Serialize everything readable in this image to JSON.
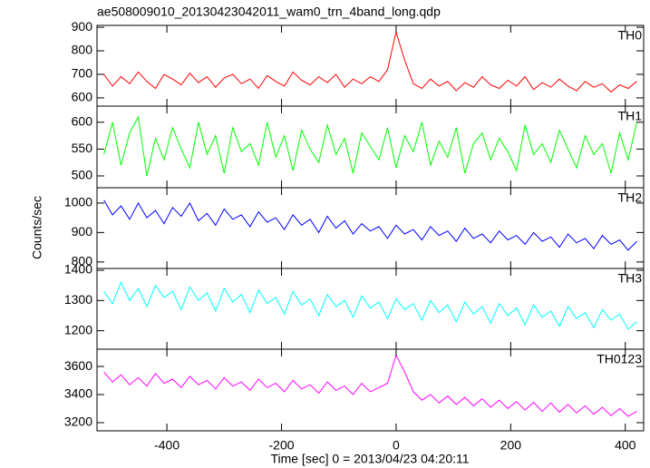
{
  "title": "ae508009010_20130423042011_wam0_trn_4band_long.qdp",
  "y_label": "Counts/sec",
  "x_label": "Time [sec] 0 = 2013/04/23 04:20:11",
  "chart_data": [
    {
      "type": "line",
      "label": "TH0",
      "color": "#ff0000",
      "xlim": [
        -522,
        432
      ],
      "xticks": [
        -400,
        -200,
        0,
        200,
        400
      ],
      "ylim": [
        565,
        908
      ],
      "yticks": [
        600,
        700,
        800,
        900
      ],
      "x": [
        -510,
        -495,
        -480,
        -465,
        -450,
        -435,
        -420,
        -405,
        -390,
        -375,
        -360,
        -345,
        -330,
        -315,
        -300,
        -285,
        -270,
        -255,
        -240,
        -225,
        -210,
        -195,
        -180,
        -165,
        -150,
        -135,
        -120,
        -105,
        -90,
        -75,
        -60,
        -45,
        -30,
        -15,
        0,
        15,
        30,
        45,
        60,
        75,
        90,
        105,
        120,
        135,
        150,
        165,
        180,
        195,
        210,
        225,
        240,
        255,
        270,
        285,
        300,
        315,
        330,
        345,
        360,
        375,
        390,
        405,
        420
      ],
      "values": [
        700,
        650,
        690,
        660,
        710,
        670,
        640,
        700,
        680,
        655,
        705,
        665,
        690,
        645,
        685,
        700,
        660,
        680,
        640,
        695,
        670,
        650,
        710,
        675,
        655,
        690,
        665,
        700,
        645,
        680,
        660,
        690,
        670,
        720,
        880,
        760,
        660,
        640,
        680,
        650,
        670,
        630,
        665,
        645,
        690,
        655,
        640,
        675,
        650,
        690,
        635,
        665,
        645,
        680,
        650,
        630,
        670,
        645,
        660,
        625,
        655,
        640,
        670
      ]
    },
    {
      "type": "line",
      "label": "TH1",
      "color": "#00ff00",
      "xlim": [
        -522,
        432
      ],
      "xticks": [
        -400,
        -200,
        0,
        200,
        400
      ],
      "ylim": [
        478,
        630
      ],
      "yticks": [
        500,
        550,
        600
      ],
      "x": [
        -510,
        -495,
        -480,
        -465,
        -450,
        -435,
        -420,
        -405,
        -390,
        -375,
        -360,
        -345,
        -330,
        -315,
        -300,
        -285,
        -270,
        -255,
        -240,
        -225,
        -210,
        -195,
        -180,
        -165,
        -150,
        -135,
        -120,
        -105,
        -90,
        -75,
        -60,
        -45,
        -30,
        -15,
        0,
        15,
        30,
        45,
        60,
        75,
        90,
        105,
        120,
        135,
        150,
        165,
        180,
        195,
        210,
        225,
        240,
        255,
        270,
        285,
        300,
        315,
        330,
        345,
        360,
        375,
        390,
        405,
        420
      ],
      "values": [
        540,
        600,
        520,
        580,
        610,
        500,
        570,
        530,
        590,
        550,
        515,
        600,
        540,
        575,
        505,
        590,
        545,
        560,
        520,
        600,
        535,
        575,
        510,
        585,
        550,
        525,
        595,
        540,
        570,
        505,
        580,
        555,
        530,
        590,
        515,
        575,
        545,
        600,
        520,
        565,
        535,
        590,
        505,
        560,
        580,
        530,
        570,
        545,
        510,
        595,
        540,
        560,
        525,
        585,
        550,
        515,
        575,
        540,
        560,
        505,
        580,
        530,
        600
      ]
    },
    {
      "type": "line",
      "label": "TH2",
      "color": "#0000ff",
      "xlim": [
        -522,
        432
      ],
      "xticks": [
        -400,
        -200,
        0,
        200,
        400
      ],
      "ylim": [
        778,
        1052
      ],
      "yticks": [
        800,
        900,
        1000
      ],
      "x": [
        -510,
        -495,
        -480,
        -465,
        -450,
        -435,
        -420,
        -405,
        -390,
        -375,
        -360,
        -345,
        -330,
        -315,
        -300,
        -285,
        -270,
        -255,
        -240,
        -225,
        -210,
        -195,
        -180,
        -165,
        -150,
        -135,
        -120,
        -105,
        -90,
        -75,
        -60,
        -45,
        -30,
        -15,
        0,
        15,
        30,
        45,
        60,
        75,
        90,
        105,
        120,
        135,
        150,
        165,
        180,
        195,
        210,
        225,
        240,
        255,
        270,
        285,
        300,
        315,
        330,
        345,
        360,
        375,
        390,
        405,
        420
      ],
      "values": [
        1010,
        960,
        990,
        945,
        1000,
        950,
        975,
        930,
        985,
        955,
        1000,
        940,
        965,
        925,
        980,
        945,
        960,
        920,
        970,
        935,
        950,
        910,
        960,
        925,
        945,
        900,
        955,
        915,
        940,
        895,
        930,
        905,
        920,
        880,
        925,
        895,
        910,
        875,
        920,
        890,
        905,
        870,
        915,
        880,
        895,
        865,
        905,
        875,
        890,
        860,
        900,
        870,
        885,
        850,
        895,
        865,
        880,
        845,
        890,
        860,
        875,
        840,
        870
      ]
    },
    {
      "type": "line",
      "label": "TH3",
      "color": "#00ffff",
      "xlim": [
        -522,
        432
      ],
      "xticks": [
        -400,
        -200,
        0,
        200,
        400
      ],
      "ylim": [
        1139,
        1406
      ],
      "yticks": [
        1200,
        1300,
        1400
      ],
      "x": [
        -510,
        -495,
        -480,
        -465,
        -450,
        -435,
        -420,
        -405,
        -390,
        -375,
        -360,
        -345,
        -330,
        -315,
        -300,
        -285,
        -270,
        -255,
        -240,
        -225,
        -210,
        -195,
        -180,
        -165,
        -150,
        -135,
        -120,
        -105,
        -90,
        -75,
        -60,
        -45,
        -30,
        -15,
        0,
        15,
        30,
        45,
        60,
        75,
        90,
        105,
        120,
        135,
        150,
        165,
        180,
        195,
        210,
        225,
        240,
        255,
        270,
        285,
        300,
        315,
        330,
        345,
        360,
        375,
        390,
        405,
        420
      ],
      "values": [
        1330,
        1290,
        1360,
        1300,
        1340,
        1280,
        1350,
        1310,
        1330,
        1270,
        1345,
        1300,
        1325,
        1265,
        1340,
        1295,
        1320,
        1260,
        1335,
        1290,
        1310,
        1255,
        1330,
        1285,
        1305,
        1250,
        1320,
        1280,
        1300,
        1245,
        1315,
        1275,
        1295,
        1240,
        1305,
        1270,
        1290,
        1235,
        1300,
        1260,
        1285,
        1230,
        1295,
        1255,
        1280,
        1225,
        1290,
        1250,
        1275,
        1220,
        1285,
        1245,
        1265,
        1215,
        1280,
        1240,
        1260,
        1210,
        1270,
        1235,
        1255,
        1205,
        1230
      ]
    },
    {
      "type": "line",
      "label": "TH0123",
      "color": "#ff00ff",
      "xlim": [
        -522,
        432
      ],
      "xticks": [
        -400,
        -200,
        0,
        200,
        400
      ],
      "ylim": [
        3142,
        3723
      ],
      "yticks": [
        3200,
        3400,
        3600
      ],
      "x": [
        -510,
        -495,
        -480,
        -465,
        -450,
        -435,
        -420,
        -405,
        -390,
        -375,
        -360,
        -345,
        -330,
        -315,
        -300,
        -285,
        -270,
        -255,
        -240,
        -225,
        -210,
        -195,
        -180,
        -165,
        -150,
        -135,
        -120,
        -105,
        -90,
        -75,
        -60,
        -45,
        -30,
        -15,
        0,
        15,
        30,
        45,
        60,
        75,
        90,
        105,
        120,
        135,
        150,
        165,
        180,
        195,
        210,
        225,
        240,
        255,
        270,
        285,
        300,
        315,
        330,
        345,
        360,
        375,
        390,
        405,
        420
      ],
      "values": [
        3560,
        3490,
        3540,
        3470,
        3520,
        3460,
        3550,
        3480,
        3510,
        3450,
        3530,
        3470,
        3500,
        3440,
        3520,
        3460,
        3490,
        3430,
        3510,
        3450,
        3480,
        3420,
        3500,
        3440,
        3470,
        3410,
        3490,
        3430,
        3460,
        3400,
        3480,
        3420,
        3450,
        3480,
        3680,
        3560,
        3420,
        3360,
        3400,
        3340,
        3390,
        3330,
        3380,
        3320,
        3370,
        3310,
        3360,
        3300,
        3350,
        3290,
        3345,
        3280,
        3340,
        3275,
        3330,
        3270,
        3320,
        3260,
        3310,
        3250,
        3300,
        3245,
        3280
      ]
    }
  ]
}
